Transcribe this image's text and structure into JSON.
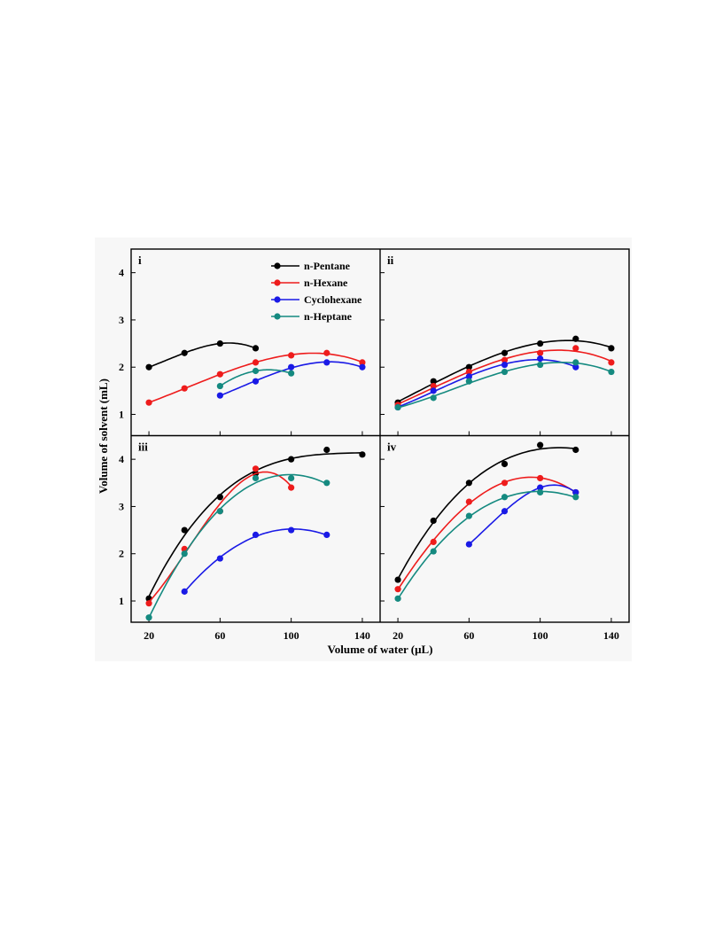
{
  "chart_data": {
    "type": "line",
    "xlabel": "Volume of water (μL)",
    "ylabel": "Volume of solvent (mL)",
    "xlim": [
      10,
      150
    ],
    "ylim": [
      0.55,
      4.5
    ],
    "x_ticks": [
      20,
      60,
      100,
      140
    ],
    "y_ticks": [
      1,
      2,
      3,
      4
    ],
    "legend": {
      "placement": "top-right of panel i",
      "entries": [
        "n-Pentane",
        "n-Hexane",
        "Cyclohexane",
        "n-Heptane"
      ]
    },
    "colors": {
      "n-Pentane": "#000000",
      "n-Hexane": "#ee1c1c",
      "Cyclohexane": "#1a1ae6",
      "n-Heptane": "#158a80"
    },
    "panels": [
      {
        "label": "i",
        "series": [
          {
            "name": "n-Pentane",
            "x": [
              20,
              40,
              60,
              80
            ],
            "y": [
              2.0,
              2.3,
              2.5,
              2.4
            ]
          },
          {
            "name": "n-Hexane",
            "x": [
              20,
              40,
              60,
              80,
              100,
              120,
              140
            ],
            "y": [
              1.25,
              1.55,
              1.85,
              2.1,
              2.25,
              2.3,
              2.1
            ]
          },
          {
            "name": "Cyclohexane",
            "x": [
              60,
              80,
              100,
              120,
              140
            ],
            "y": [
              1.4,
              1.7,
              2.0,
              2.1,
              2.0
            ]
          },
          {
            "name": "n-Heptane",
            "x": [
              60,
              80,
              100
            ],
            "y": [
              1.6,
              1.92,
              1.87
            ]
          }
        ]
      },
      {
        "label": "ii",
        "series": [
          {
            "name": "n-Pentane",
            "x": [
              20,
              40,
              60,
              80,
              100,
              120,
              140
            ],
            "y": [
              1.25,
              1.7,
              2.0,
              2.3,
              2.5,
              2.6,
              2.4
            ]
          },
          {
            "name": "n-Hexane",
            "x": [
              20,
              40,
              60,
              80,
              100,
              120,
              140
            ],
            "y": [
              1.2,
              1.6,
              1.9,
              2.15,
              2.3,
              2.4,
              2.1
            ]
          },
          {
            "name": "Cyclohexane",
            "x": [
              20,
              40,
              60,
              80,
              100,
              120
            ],
            "y": [
              1.15,
              1.5,
              1.8,
              2.05,
              2.18,
              2.0
            ]
          },
          {
            "name": "n-Heptane",
            "x": [
              20,
              40,
              60,
              80,
              100,
              120,
              140
            ],
            "y": [
              1.15,
              1.35,
              1.7,
              1.9,
              2.05,
              2.1,
              1.9
            ]
          }
        ]
      },
      {
        "label": "iii",
        "series": [
          {
            "name": "n-Pentane",
            "x": [
              20,
              40,
              60,
              80,
              100,
              120,
              140
            ],
            "y": [
              1.05,
              2.5,
              3.2,
              3.7,
              4.0,
              4.2,
              4.1
            ]
          },
          {
            "name": "n-Hexane",
            "x": [
              20,
              40,
              60,
              80,
              100
            ],
            "y": [
              0.95,
              2.1,
              2.9,
              3.8,
              3.4
            ]
          },
          {
            "name": "Cyclohexane",
            "x": [
              40,
              60,
              80,
              100,
              120
            ],
            "y": [
              1.2,
              1.9,
              2.4,
              2.5,
              2.4
            ]
          },
          {
            "name": "n-Heptane",
            "x": [
              20,
              40,
              60,
              80,
              100,
              120
            ],
            "y": [
              0.65,
              2.0,
              2.9,
              3.6,
              3.6,
              3.5
            ]
          }
        ]
      },
      {
        "label": "iv",
        "series": [
          {
            "name": "n-Pentane",
            "x": [
              20,
              40,
              60,
              80,
              100,
              120
            ],
            "y": [
              1.45,
              2.7,
              3.5,
              3.9,
              4.3,
              4.2
            ]
          },
          {
            "name": "n-Hexane",
            "x": [
              20,
              40,
              60,
              80,
              100,
              120
            ],
            "y": [
              1.25,
              2.25,
              3.1,
              3.5,
              3.6,
              3.3
            ]
          },
          {
            "name": "Cyclohexane",
            "x": [
              60,
              80,
              100,
              120
            ],
            "y": [
              2.2,
              2.9,
              3.4,
              3.3
            ]
          },
          {
            "name": "n-Heptane",
            "x": [
              20,
              40,
              60,
              80,
              100,
              120
            ],
            "y": [
              1.05,
              2.05,
              2.8,
              3.2,
              3.3,
              3.2
            ]
          }
        ]
      }
    ]
  }
}
